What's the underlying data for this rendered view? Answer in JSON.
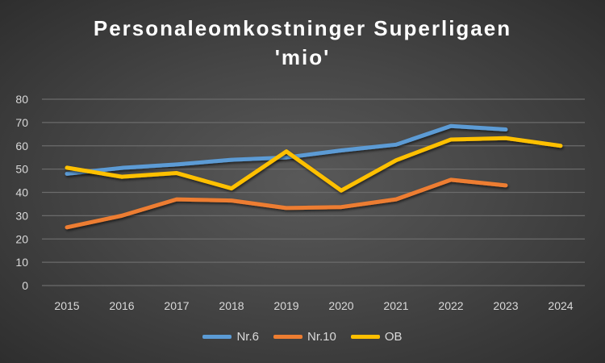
{
  "chart_data": {
    "type": "line",
    "title": "Personaleomkostninger Superligaen",
    "subtitle": "'mio'",
    "xlabel": "",
    "ylabel": "",
    "x": [
      "2015",
      "2016",
      "2017",
      "2018",
      "2019",
      "2020",
      "2021",
      "2022",
      "2023",
      "2024"
    ],
    "ylim": [
      0,
      80
    ],
    "yticks": [
      "0",
      "10",
      "20",
      "30",
      "40",
      "50",
      "60",
      "70",
      "80"
    ],
    "grid": true,
    "legend_position": "bottom",
    "series": [
      {
        "name": "Nr.6",
        "color": "#5b9bd5",
        "values": [
          48,
          50.5,
          52,
          54,
          55,
          58,
          60.5,
          68.5,
          67,
          null
        ]
      },
      {
        "name": "Nr.10",
        "color": "#ed7d31",
        "values": [
          25,
          30,
          37,
          36.5,
          33.3,
          33.7,
          37,
          45.4,
          43,
          null
        ]
      },
      {
        "name": "OB",
        "color": "#ffc000",
        "values": [
          50.6,
          46.7,
          48.3,
          41.7,
          57.6,
          40.8,
          53.8,
          62.7,
          63.3,
          60
        ]
      }
    ]
  }
}
